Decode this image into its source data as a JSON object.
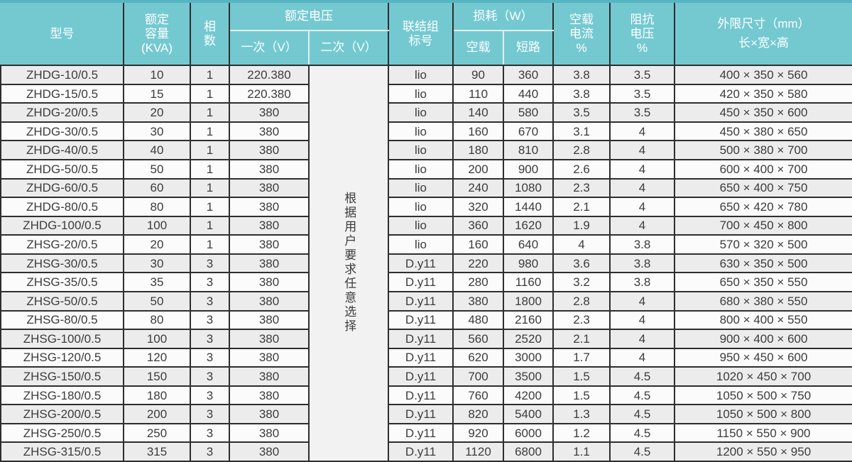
{
  "colors": {
    "header_teal": "#74c9d1",
    "top_strip_teal": "#58b4c2",
    "bottom_strip_teal": "#74c9d1",
    "row_stripe_gray": "#ececec",
    "row_stripe_white": "#fbfbfb",
    "border_dark": "#2e2e2e",
    "header_text": "#ffffff",
    "body_text": "#3c3c3c"
  },
  "table": {
    "headers": {
      "model": "型号",
      "capacity": "额定\n容量\n(KVA)",
      "phases": "相\n数",
      "voltage_group": "额定电压",
      "voltage_primary": "一次（V）",
      "voltage_secondary": "二次（V）",
      "connection": "联结组\n标号",
      "loss_group": "损耗（W）",
      "loss_noload": "空载",
      "loss_short": "短路",
      "noload_current": "空载\n电流\n%",
      "impedance_voltage": "阻抗\n电压\n%",
      "dimensions_line1": "外限尺寸（mm）",
      "dimensions_line2": "长×宽×高"
    },
    "secondary_voltage_note": "根据用户要求任意选择",
    "rows": [
      [
        "ZHDG-10/0.5",
        "10",
        "1",
        "220.380",
        "lio",
        "90",
        "360",
        "3.8",
        "3.5",
        "400 × 350 × 560"
      ],
      [
        "ZHDG-15/0.5",
        "15",
        "1",
        "220.380",
        "lio",
        "110",
        "440",
        "3.8",
        "3.5",
        "420 × 350 × 580"
      ],
      [
        "ZHDG-20/0.5",
        "20",
        "1",
        "380",
        "lio",
        "140",
        "580",
        "3.5",
        "3.5",
        "450 × 350 × 600"
      ],
      [
        "ZHDG-30/0.5",
        "30",
        "1",
        "380",
        "lio",
        "160",
        "670",
        "3.1",
        "4",
        "450 × 380 × 650"
      ],
      [
        "ZHDG-40/0.5",
        "40",
        "1",
        "380",
        "lio",
        "180",
        "810",
        "2.8",
        "4",
        "500 × 380 × 700"
      ],
      [
        "ZHDG-50/0.5",
        "50",
        "1",
        "380",
        "lio",
        "200",
        "900",
        "2.6",
        "4",
        "600 × 400 × 700"
      ],
      [
        "ZHDG-60/0.5",
        "60",
        "1",
        "380",
        "lio",
        "240",
        "1080",
        "2.3",
        "4",
        "650 × 400 × 750"
      ],
      [
        "ZHDG-80/0.5",
        "80",
        "1",
        "380",
        "lio",
        "320",
        "1440",
        "2.1",
        "4",
        "650 × 420 × 780"
      ],
      [
        "ZHDG-100/0.5",
        "100",
        "1",
        "380",
        "lio",
        "360",
        "1620",
        "1.9",
        "4",
        "700 × 450 × 800"
      ],
      [
        "ZHSG-20/0.5",
        "20",
        "1",
        "380",
        "lio",
        "160",
        "640",
        "4",
        "3.8",
        "570 × 320 × 500"
      ],
      [
        "ZHSG-30/0.5",
        "30",
        "3",
        "380",
        "D.y11",
        "220",
        "980",
        "3.6",
        "3.8",
        "630 × 350 × 500"
      ],
      [
        "ZHSG-35/0.5",
        "35",
        "3",
        "380",
        "D.y11",
        "280",
        "1160",
        "3.2",
        "3.8",
        "650 × 350 × 550"
      ],
      [
        "ZHSG-50/0.5",
        "50",
        "3",
        "380",
        "D.y11",
        "380",
        "1800",
        "2.8",
        "4",
        "680 × 380 × 550"
      ],
      [
        "ZHSG-80/0.5",
        "80",
        "3",
        "380",
        "D.y11",
        "480",
        "2160",
        "2.3",
        "4",
        "800 × 400 × 550"
      ],
      [
        "ZHSG-100/0.5",
        "100",
        "3",
        "380",
        "D.y11",
        "560",
        "2520",
        "2.1",
        "4",
        "900 × 400 × 600"
      ],
      [
        "ZHSG-120/0.5",
        "120",
        "3",
        "380",
        "D.y11",
        "620",
        "3000",
        "1.7",
        "4",
        "950 × 450 × 600"
      ],
      [
        "ZHSG-150/0.5",
        "150",
        "3",
        "380",
        "D.y11",
        "700",
        "3500",
        "1.5",
        "4.5",
        "1020 × 450 × 700"
      ],
      [
        "ZHSG-180/0.5",
        "180",
        "3",
        "380",
        "D.y11",
        "760",
        "4200",
        "1.5",
        "4.5",
        "1050 × 500 × 750"
      ],
      [
        "ZHSG-200/0.5",
        "200",
        "3",
        "380",
        "D.y11",
        "820",
        "5400",
        "1.3",
        "4.5",
        "1050 × 500 × 800"
      ],
      [
        "ZHSG-250/0.5",
        "250",
        "3",
        "380",
        "D.y11",
        "920",
        "6000",
        "1.2",
        "4.5",
        "1150 × 550 × 900"
      ],
      [
        "ZHSG-315/0.5",
        "315",
        "3",
        "380",
        "D.y11",
        "1120",
        "6800",
        "1.1",
        "4.5",
        "1200 × 550 × 950"
      ]
    ]
  }
}
